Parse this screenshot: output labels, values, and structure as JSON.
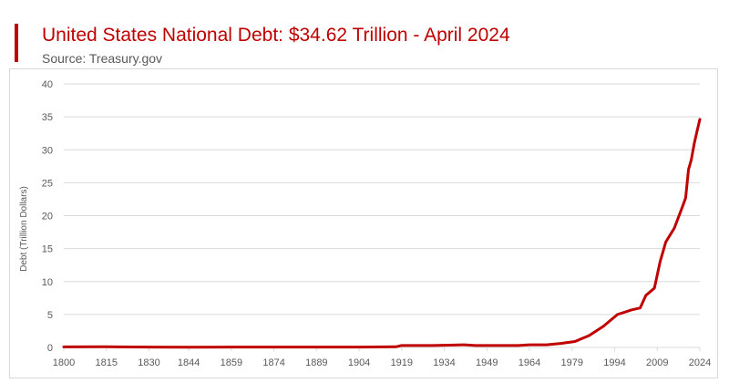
{
  "header": {
    "title": "United States National Debt: $34.62 Trillion - April 2024",
    "subtitle": "Source: Treasury.gov"
  },
  "colors": {
    "accent": "#c00000",
    "line": "#c00000",
    "grid": "#d9d9d9",
    "text": "#595959"
  },
  "chart_data": {
    "type": "line",
    "title": "United States National Debt: $34.62 Trillion - April 2024",
    "subtitle": "Source: Treasury.gov",
    "xlabel": "",
    "ylabel": "Debt (Trillion Dollars)",
    "xlim": [
      1800,
      2024
    ],
    "ylim": [
      0,
      40
    ],
    "grid": true,
    "legend": "none",
    "x_ticks": [
      "1800",
      "1815",
      "1830",
      "1844",
      "1859",
      "1874",
      "1889",
      "1904",
      "1919",
      "1934",
      "1949",
      "1964",
      "1979",
      "1994",
      "2009",
      "2024"
    ],
    "y_ticks": [
      "0",
      "5",
      "10",
      "15",
      "20",
      "25",
      "30",
      "35",
      "40"
    ],
    "series": [
      {
        "x": [
          1800,
          1815,
          1830,
          1844,
          1859,
          1874,
          1889,
          1904,
          1917,
          1919,
          1930,
          1941,
          1945,
          1950,
          1960,
          1964,
          1970,
          1975,
          1980,
          1985,
          1990,
          1995,
          2000,
          2003,
          2005,
          2008,
          2010,
          2012,
          2015,
          2018,
          2019,
          2020,
          2021,
          2022,
          2023,
          2024
        ],
        "y": [
          0.08,
          0.1,
          0.05,
          0.03,
          0.06,
          0.05,
          0.05,
          0.05,
          0.1,
          0.3,
          0.3,
          0.4,
          0.3,
          0.3,
          0.3,
          0.4,
          0.4,
          0.6,
          0.9,
          1.8,
          3.2,
          5.0,
          5.7,
          6.0,
          7.9,
          9.0,
          13.0,
          16.0,
          18.1,
          21.5,
          22.7,
          27.0,
          28.5,
          30.9,
          32.8,
          34.62
        ]
      }
    ]
  }
}
